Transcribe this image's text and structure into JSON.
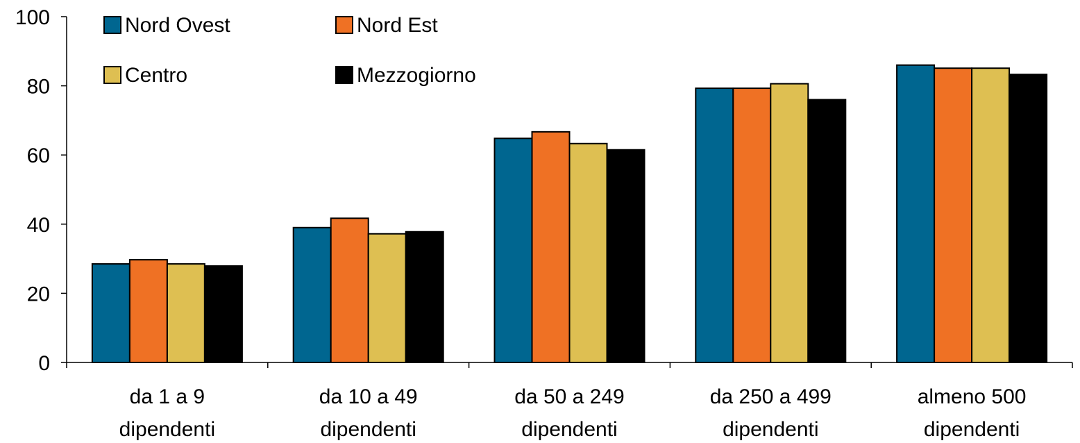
{
  "chart_data": {
    "type": "bar",
    "title": "",
    "xlabel": "",
    "ylabel": "",
    "ylim": [
      0,
      100
    ],
    "yticks": [
      0,
      20,
      40,
      60,
      80,
      100
    ],
    "grid": false,
    "legend_position": "top-left",
    "categories": [
      [
        "da 1 a 9",
        "dipendenti"
      ],
      [
        "da 10 a 49",
        "dipendenti"
      ],
      [
        "da 50 a 249",
        "dipendenti"
      ],
      [
        "da 250 a 499",
        "dipendenti"
      ],
      [
        "almeno 500",
        "dipendenti"
      ]
    ],
    "series": [
      {
        "name": "Nord Ovest",
        "color": "#006690",
        "values": [
          28.5,
          39,
          64.8,
          79.3,
          86
        ]
      },
      {
        "name": "Nord Est",
        "color": "#EF7124",
        "values": [
          29.7,
          41.7,
          66.7,
          79.3,
          85.1
        ]
      },
      {
        "name": "Centro",
        "color": "#DEBF52",
        "values": [
          28.5,
          37.2,
          63.3,
          80.6,
          85.1
        ]
      },
      {
        "name": "Mezzogiorno",
        "color": "#000000",
        "values": [
          27.9,
          37.8,
          61.5,
          76,
          83.3
        ]
      }
    ]
  }
}
